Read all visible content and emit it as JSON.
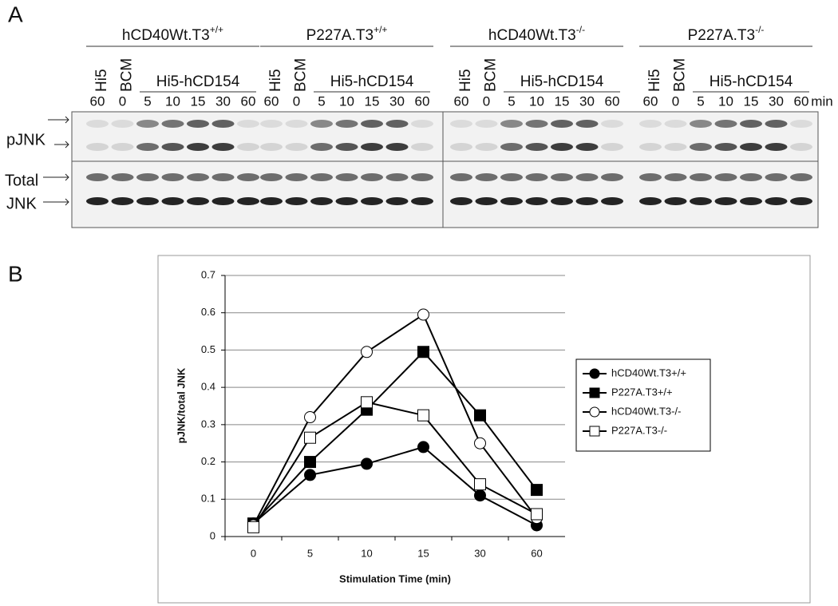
{
  "panel_a": {
    "label": "A",
    "groups": [
      {
        "name": "hCD40Wt.T3",
        "sup": "+/+",
        "controls": [
          "Hi5",
          "BCM"
        ],
        "stim": "Hi5-hCD154",
        "lanes": [
          "60",
          "0",
          "5",
          "10",
          "15",
          "30",
          "60"
        ]
      },
      {
        "name": "P227A.T3",
        "sup": "+/+",
        "controls": [
          "Hi5",
          "BCM"
        ],
        "stim": "Hi5-hCD154",
        "lanes": [
          "60",
          "0",
          "5",
          "10",
          "15",
          "30",
          "60"
        ]
      },
      {
        "name": "hCD40Wt.T3",
        "sup": "-/-",
        "controls": [
          "Hi5",
          "BCM"
        ],
        "stim": "Hi5-hCD154",
        "lanes": [
          "60",
          "0",
          "5",
          "10",
          "15",
          "30",
          "60"
        ]
      },
      {
        "name": "P227A.T3",
        "sup": "-/-",
        "controls": [
          "Hi5",
          "BCM"
        ],
        "stim": "Hi5-hCD154",
        "lanes": [
          "60",
          "0",
          "5",
          "10",
          "15",
          "30",
          "60"
        ]
      }
    ],
    "unit": "min",
    "rows": [
      "pJNK",
      "Total",
      "JNK"
    ]
  },
  "chart_data": {
    "type": "line",
    "panel_label": "B",
    "x_label": "Stimulation Time (min)",
    "y_label": "pJNK/total JNK",
    "categories": [
      "0",
      "5",
      "10",
      "15",
      "30",
      "60"
    ],
    "ylim": [
      0,
      0.7
    ],
    "yticks": [
      0,
      0.1,
      0.2,
      0.3,
      0.4,
      0.5,
      0.6,
      0.7
    ],
    "grid": true,
    "legend": "right",
    "series": [
      {
        "name": "hCD40Wt.T3+/+",
        "color": "#000000",
        "marker": "circle",
        "filled": true,
        "values": [
          0.035,
          0.165,
          0.195,
          0.24,
          0.11,
          0.03
        ]
      },
      {
        "name": "P227A.T3+/+",
        "color": "#000000",
        "marker": "square",
        "filled": true,
        "values": [
          0.035,
          0.2,
          0.34,
          0.495,
          0.325,
          0.125
        ]
      },
      {
        "name": "hCD40Wt.T3-/-",
        "color": "#000000",
        "marker": "circle",
        "filled": false,
        "values": [
          0.03,
          0.32,
          0.495,
          0.595,
          0.25,
          0.05
        ]
      },
      {
        "name": "P227A.T3-/-",
        "color": "#000000",
        "marker": "square",
        "filled": false,
        "values": [
          0.025,
          0.265,
          0.36,
          0.325,
          0.14,
          0.06
        ]
      }
    ]
  }
}
